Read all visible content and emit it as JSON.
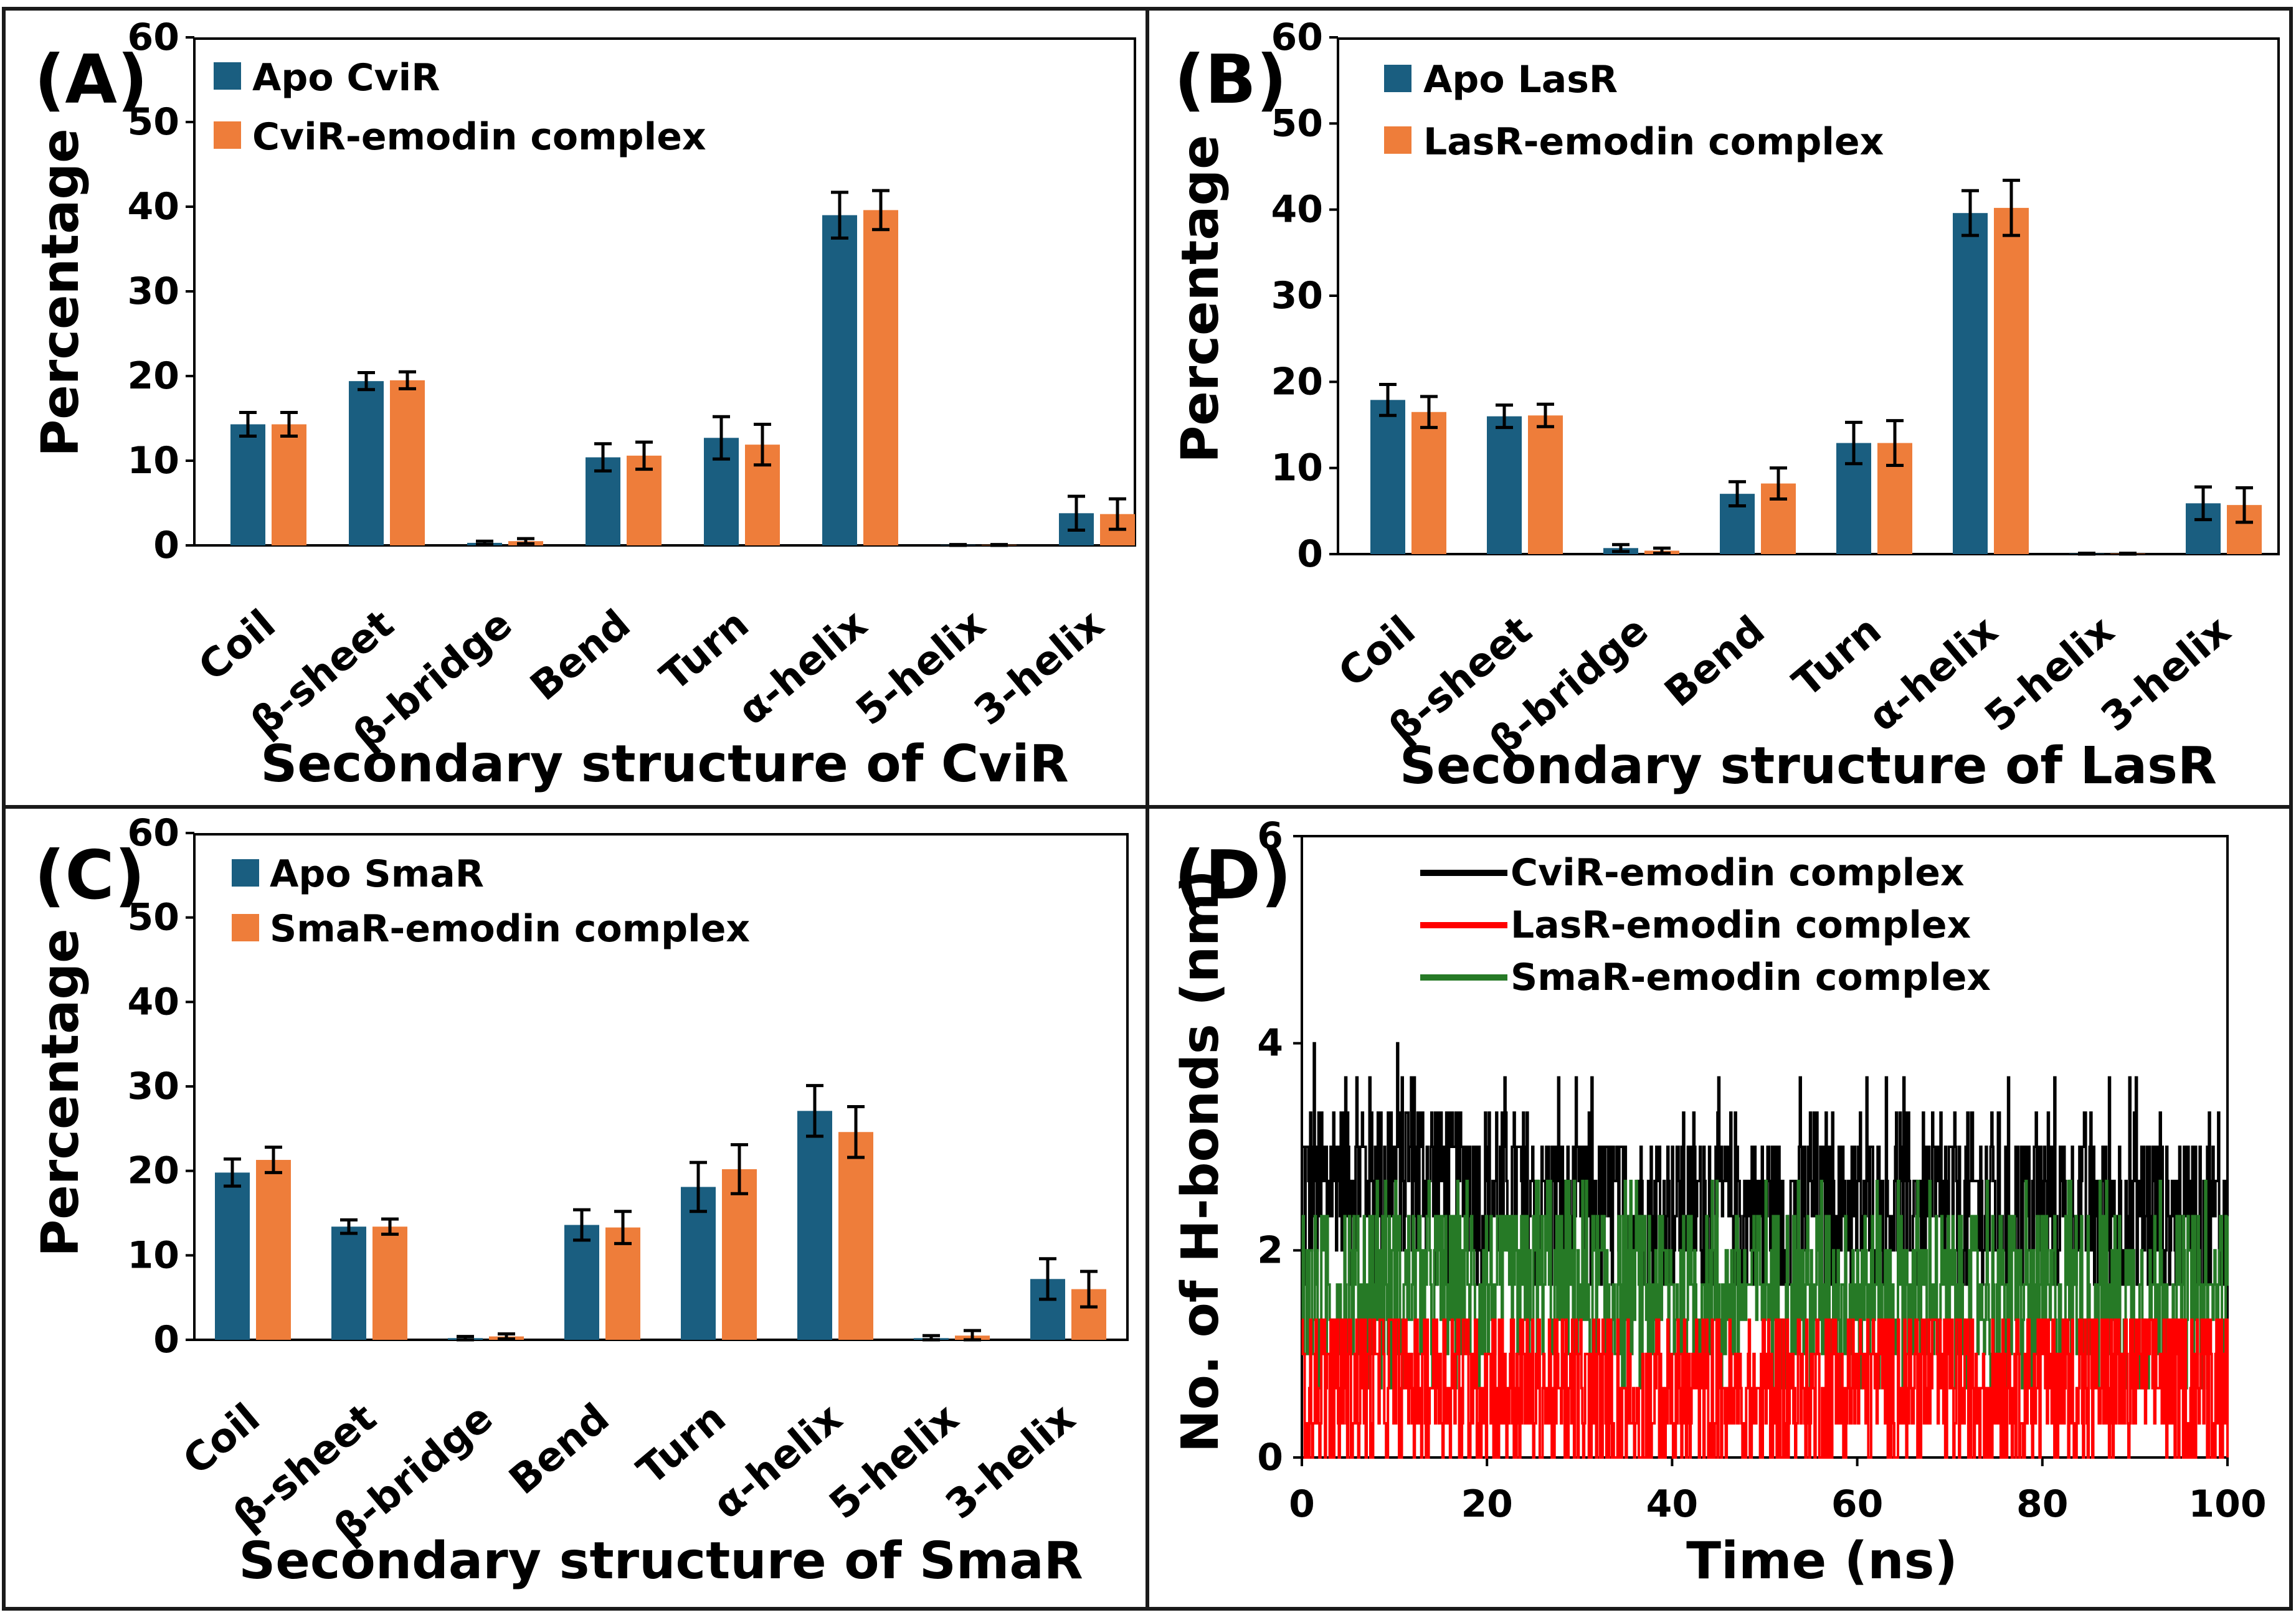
{
  "colors": {
    "apo": "#1a5e80",
    "complex": "#ee7d3a",
    "black": "#000000",
    "red": "#ff0000",
    "green": "#267a26",
    "frame": "#1a1a1a"
  },
  "chart_data": [
    {
      "panel": "(A)",
      "type": "bar",
      "categories": [
        "Coil",
        "β-sheet",
        "β-bridge",
        "Bend",
        "Turn",
        "α-helix",
        "5-helix",
        "3-helix"
      ],
      "series": [
        {
          "name": "Apo CviR",
          "values": [
            14.3,
            19.4,
            0.3,
            10.4,
            12.7,
            39.0,
            0.05,
            3.8
          ],
          "errors": [
            1.4,
            1.0,
            0.2,
            1.6,
            2.5,
            2.7,
            0.05,
            2.0
          ],
          "color_key": "apo"
        },
        {
          "name": "CviR-emodin complex",
          "values": [
            14.3,
            19.5,
            0.5,
            10.6,
            11.9,
            39.6,
            0.05,
            3.7
          ],
          "errors": [
            1.4,
            1.0,
            0.3,
            1.6,
            2.4,
            2.3,
            0.05,
            1.8
          ],
          "color_key": "complex"
        }
      ],
      "title": "",
      "xlabel": "Secondary structure of CviR",
      "ylabel": "Percentage",
      "ylim": [
        0,
        60
      ],
      "yticks": [
        "0",
        "10",
        "20",
        "30",
        "40",
        "50",
        "60"
      ],
      "legend": "top-left"
    },
    {
      "panel": "(B)",
      "type": "bar",
      "categories": [
        "Coil",
        "β-sheet",
        "β-bridge",
        "Bend",
        "Turn",
        "α-helix",
        "5-helix",
        "3-helix"
      ],
      "series": [
        {
          "name": "Apo LasR",
          "values": [
            17.9,
            16.0,
            0.7,
            7.0,
            12.9,
            39.6,
            0.05,
            5.9
          ],
          "errors": [
            1.8,
            1.3,
            0.4,
            1.4,
            2.4,
            2.6,
            0.05,
            1.9
          ],
          "color_key": "apo"
        },
        {
          "name": "LasR-emodin complex",
          "values": [
            16.5,
            16.1,
            0.4,
            8.2,
            12.9,
            40.2,
            0.05,
            5.7
          ],
          "errors": [
            1.8,
            1.3,
            0.3,
            1.8,
            2.6,
            3.2,
            0.05,
            2.0
          ],
          "color_key": "complex"
        }
      ],
      "title": "",
      "xlabel": "Secondary structure of LasR",
      "ylabel": "Percentage",
      "ylim": [
        0,
        60
      ],
      "yticks": [
        "0",
        "10",
        "20",
        "30",
        "40",
        "50",
        "60"
      ],
      "legend": "top-left"
    },
    {
      "panel": "(C)",
      "type": "bar",
      "categories": [
        "Coil",
        "β-sheet",
        "β-bridge",
        "Bend",
        "Turn",
        "α-helix",
        "5-helix",
        "3-helix"
      ],
      "series": [
        {
          "name": "Apo SmaR",
          "values": [
            19.8,
            13.4,
            0.2,
            13.6,
            18.1,
            27.1,
            0.2,
            7.2
          ],
          "errors": [
            1.6,
            0.8,
            0.2,
            1.8,
            2.9,
            3.0,
            0.3,
            2.4
          ],
          "color_key": "apo"
        },
        {
          "name": "SmaR-emodin complex",
          "values": [
            21.3,
            13.4,
            0.4,
            13.3,
            20.2,
            24.6,
            0.5,
            6.0
          ],
          "errors": [
            1.5,
            0.9,
            0.3,
            1.9,
            2.9,
            3.0,
            0.6,
            2.1
          ],
          "color_key": "complex"
        }
      ],
      "title": "",
      "xlabel": "Secondary structure of SmaR",
      "ylabel": "Percentage",
      "ylim": [
        0,
        60
      ],
      "yticks": [
        "0",
        "10",
        "20",
        "30",
        "40",
        "50",
        "60"
      ],
      "legend": "top-left"
    },
    {
      "panel": "(D)",
      "type": "line",
      "series": [
        {
          "name": "CviR-emodin complex",
          "color_key": "black",
          "levels": [
            1.67,
            2.0,
            2.33,
            2.67,
            3.0,
            3.33,
            3.67,
            4.0
          ],
          "mean_profile": [
            [
              0,
              2.6
            ],
            [
              5,
              2.75
            ],
            [
              12,
              2.85
            ],
            [
              20,
              2.55
            ],
            [
              30,
              2.4
            ],
            [
              50,
              2.45
            ],
            [
              70,
              2.45
            ],
            [
              85,
              2.45
            ],
            [
              100,
              2.3
            ]
          ]
        },
        {
          "name": "LasR-emodin complex",
          "color_key": "red",
          "levels": [
            0,
            0.33,
            0.67,
            1.0,
            1.33
          ],
          "mean_profile": [
            [
              0,
              0.75
            ],
            [
              20,
              0.8
            ],
            [
              30,
              0.55
            ],
            [
              40,
              0.5
            ],
            [
              60,
              0.7
            ],
            [
              80,
              0.8
            ],
            [
              100,
              0.85
            ]
          ]
        },
        {
          "name": "SmaR-emodin complex",
          "color_key": "green",
          "levels": [
            0.67,
            1.0,
            1.33,
            1.67,
            2.0,
            2.33,
            2.67
          ],
          "mean_profile": [
            [
              0,
              1.55
            ],
            [
              10,
              1.7
            ],
            [
              20,
              1.65
            ],
            [
              50,
              1.6
            ],
            [
              80,
              1.55
            ],
            [
              100,
              1.5
            ]
          ]
        }
      ],
      "title": "",
      "xlabel": "Time (ns)",
      "ylabel": "No. of H-bonds (nm)",
      "xlim": [
        0,
        100
      ],
      "ylim": [
        0,
        6
      ],
      "xticks": [
        "0",
        "20",
        "40",
        "60",
        "80",
        "100"
      ],
      "yticks": [
        "0",
        "2",
        "4",
        "6"
      ],
      "legend": "top-center"
    }
  ]
}
